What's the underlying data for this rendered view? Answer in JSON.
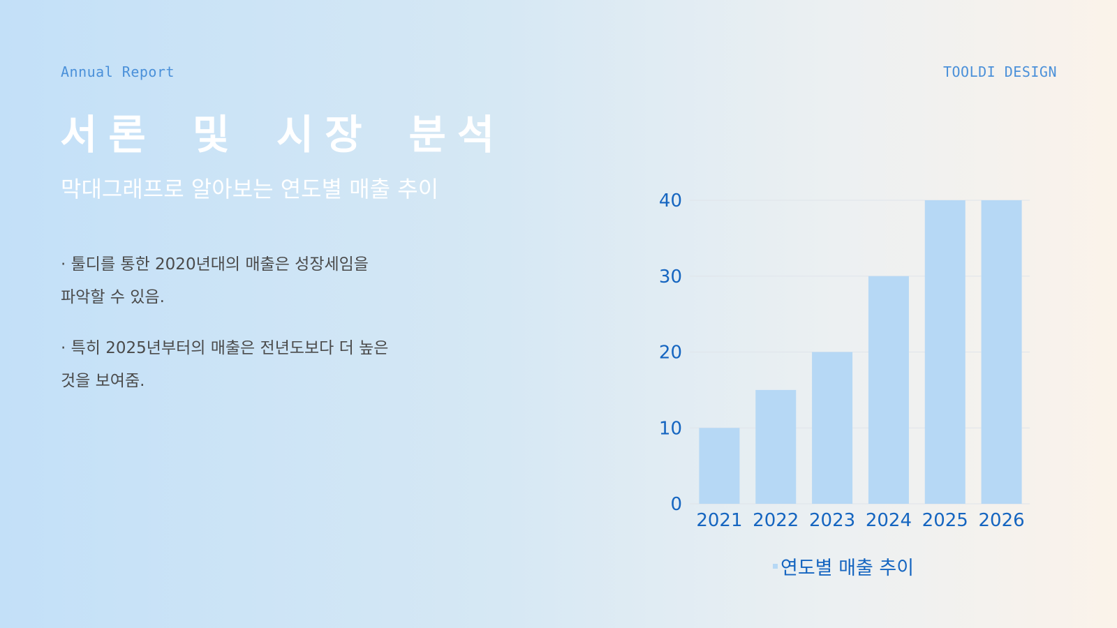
{
  "header": {
    "report_label": "Annual Report",
    "brand_label": "TOOLDI DESIGN"
  },
  "main": {
    "title": "서론 및 시장 분석",
    "subtitle": "막대그래프로 알아보는 연도별 매출 추이",
    "bullets": [
      {
        "line1": "· 툴디를 통한 2020년대의 매출은 성장세임을",
        "line2": "파악할 수 있음."
      },
      {
        "line1": "· 특히 2025년부터의 매출은 전년도보다 더 높은",
        "line2": "것을 보여줌."
      }
    ]
  },
  "chart_data": {
    "type": "bar",
    "categories": [
      "2021",
      "2022",
      "2023",
      "2024",
      "2025",
      "2026"
    ],
    "series": [
      {
        "name": "연도별 매출 추이",
        "values": [
          10,
          15,
          20,
          30,
          40,
          40
        ]
      }
    ],
    "title": "",
    "xlabel": "",
    "ylabel": "",
    "ylim": [
      0,
      40
    ],
    "yticks": [
      "0",
      "10",
      "20",
      "30",
      "40"
    ],
    "grid": true,
    "legend_position": "bottom",
    "colors": {
      "bar": "#b6d8f5",
      "tick_text": "#1565c0",
      "grid": "#dfe4ea"
    }
  }
}
